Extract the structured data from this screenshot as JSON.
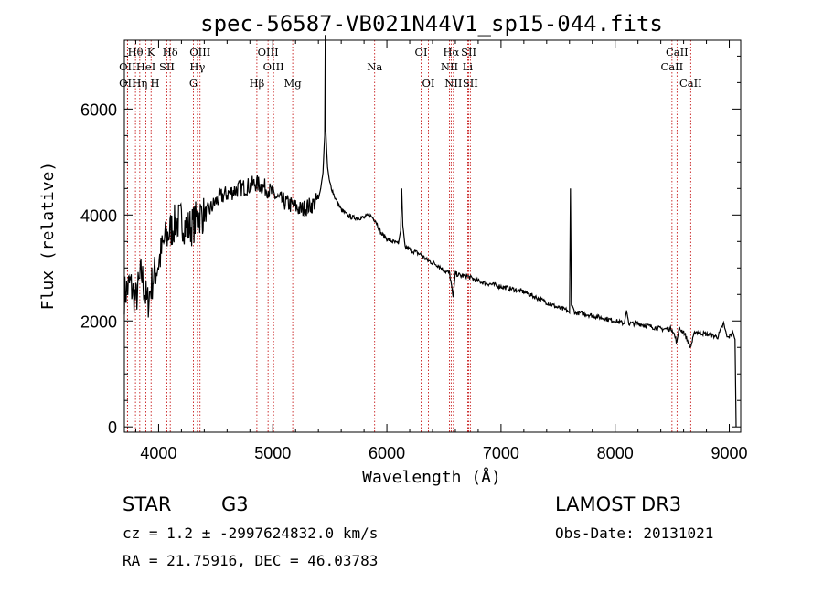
{
  "chart_data": {
    "type": "line",
    "title": "spec-56587-VB021N44V1_sp15-044.fits",
    "xlabel": "Wavelength (Å)",
    "ylabel": "Flux (relative)",
    "xlim": [
      3700,
      9100
    ],
    "ylim": [
      -100,
      7300
    ],
    "xticks": [
      4000,
      5000,
      6000,
      7000,
      8000,
      9000
    ],
    "yticks": [
      0,
      2000,
      4000,
      6000
    ],
    "continuum": [
      [
        3700,
        2500
      ],
      [
        3750,
        2700
      ],
      [
        3800,
        2400
      ],
      [
        3850,
        2900
      ],
      [
        3900,
        2300
      ],
      [
        3950,
        2800
      ],
      [
        4000,
        3100
      ],
      [
        4050,
        3500
      ],
      [
        4100,
        3700
      ],
      [
        4150,
        3850
      ],
      [
        4200,
        3900
      ],
      [
        4250,
        3750
      ],
      [
        4300,
        3800
      ],
      [
        4350,
        4000
      ],
      [
        4400,
        4000
      ],
      [
        4450,
        4100
      ],
      [
        4500,
        4250
      ],
      [
        4550,
        4350
      ],
      [
        4600,
        4400
      ],
      [
        4650,
        4450
      ],
      [
        4700,
        4500
      ],
      [
        4750,
        4520
      ],
      [
        4800,
        4550
      ],
      [
        4850,
        4600
      ],
      [
        4900,
        4550
      ],
      [
        4950,
        4500
      ],
      [
        5000,
        4400
      ],
      [
        5050,
        4300
      ],
      [
        5100,
        4250
      ],
      [
        5150,
        4200
      ],
      [
        5200,
        4150
      ],
      [
        5250,
        4100
      ],
      [
        5300,
        4150
      ],
      [
        5350,
        4200
      ],
      [
        5400,
        4300
      ],
      [
        5420,
        4500
      ],
      [
        5440,
        4800
      ],
      [
        5455,
        5500
      ],
      [
        5460,
        7400
      ],
      [
        5465,
        5600
      ],
      [
        5480,
        4900
      ],
      [
        5500,
        4600
      ],
      [
        5550,
        4300
      ],
      [
        5600,
        4100
      ],
      [
        5650,
        4000
      ],
      [
        5700,
        3950
      ],
      [
        5800,
        3950
      ],
      [
        5850,
        4000
      ],
      [
        5900,
        3900
      ],
      [
        5950,
        3650
      ],
      [
        6000,
        3550
      ],
      [
        6050,
        3500
      ],
      [
        6100,
        3450
      ],
      [
        6120,
        3700
      ],
      [
        6130,
        4500
      ],
      [
        6140,
        3800
      ],
      [
        6160,
        3400
      ],
      [
        6200,
        3350
      ],
      [
        6250,
        3300
      ],
      [
        6300,
        3250
      ],
      [
        6350,
        3150
      ],
      [
        6400,
        3100
      ],
      [
        6450,
        3050
      ],
      [
        6500,
        2950
      ],
      [
        6550,
        2900
      ],
      [
        6580,
        2450
      ],
      [
        6600,
        2900
      ],
      [
        6650,
        2850
      ],
      [
        6700,
        2850
      ],
      [
        6750,
        2800
      ],
      [
        6800,
        2750
      ],
      [
        6900,
        2700
      ],
      [
        7000,
        2650
      ],
      [
        7100,
        2600
      ],
      [
        7200,
        2550
      ],
      [
        7300,
        2450
      ],
      [
        7400,
        2350
      ],
      [
        7500,
        2250
      ],
      [
        7580,
        2200
      ],
      [
        7600,
        2150
      ],
      [
        7608,
        4500
      ],
      [
        7616,
        2300
      ],
      [
        7650,
        2150
      ],
      [
        7700,
        2150
      ],
      [
        7800,
        2100
      ],
      [
        7900,
        2050
      ],
      [
        8000,
        2000
      ],
      [
        8080,
        1950
      ],
      [
        8100,
        2200
      ],
      [
        8120,
        1950
      ],
      [
        8200,
        1950
      ],
      [
        8300,
        1900
      ],
      [
        8400,
        1850
      ],
      [
        8500,
        1850
      ],
      [
        8540,
        1600
      ],
      [
        8560,
        1850
      ],
      [
        8600,
        1800
      ],
      [
        8660,
        1500
      ],
      [
        8700,
        1800
      ],
      [
        8800,
        1750
      ],
      [
        8900,
        1700
      ],
      [
        8950,
        1950
      ],
      [
        8980,
        1700
      ],
      [
        9000,
        1700
      ],
      [
        9030,
        1800
      ],
      [
        9050,
        1650
      ],
      [
        9060,
        0
      ]
    ],
    "lines": [
      {
        "label": "Hθ",
        "x": 3797,
        "row": 1
      },
      {
        "label": "OII",
        "x": 3727,
        "row": 2
      },
      {
        "label": "OII",
        "x": 3727,
        "row": 3
      },
      {
        "label": "Hη",
        "x": 3835,
        "row": 3
      },
      {
        "label": "HeI",
        "x": 3889,
        "row": 2
      },
      {
        "label": "K",
        "x": 3934,
        "row": 1
      },
      {
        "label": "H",
        "x": 3969,
        "row": 3
      },
      {
        "label": "SII",
        "x": 4072,
        "row": 2
      },
      {
        "label": "Hδ",
        "x": 4102,
        "row": 1
      },
      {
        "label": "OIII",
        "x": 4363,
        "row": 1
      },
      {
        "label": "Hγ",
        "x": 4340,
        "row": 2
      },
      {
        "label": "G",
        "x": 4305,
        "row": 3
      },
      {
        "label": "OIII",
        "x": 4959,
        "row": 1
      },
      {
        "label": "OIII",
        "x": 5007,
        "row": 2
      },
      {
        "label": "Hβ",
        "x": 4861,
        "row": 3
      },
      {
        "label": "Mg",
        "x": 5175,
        "row": 3
      },
      {
        "label": "Na",
        "x": 5893,
        "row": 2
      },
      {
        "label": "OI",
        "x": 6300,
        "row": 1
      },
      {
        "label": "OI",
        "x": 6364,
        "row": 3
      },
      {
        "label": "Hα",
        "x": 6563,
        "row": 1
      },
      {
        "label": "NII",
        "x": 6548,
        "row": 2
      },
      {
        "label": "NII",
        "x": 6583,
        "row": 3
      },
      {
        "label": "SII",
        "x": 6717,
        "row": 1
      },
      {
        "label": "Li",
        "x": 6708,
        "row": 2
      },
      {
        "label": "SII",
        "x": 6731,
        "row": 3
      },
      {
        "label": "CaII",
        "x": 8542,
        "row": 1
      },
      {
        "label": "CaII",
        "x": 8498,
        "row": 2
      },
      {
        "label": "CaII",
        "x": 8662,
        "row": 3
      }
    ],
    "line_color": "#c00000"
  },
  "info": {
    "object_class": "STAR",
    "subclass": "G3",
    "survey": "LAMOST DR3",
    "redshift_text": "cz = 1.2 ± -2997624832.0 km/s",
    "obs_date": "Obs-Date: 20131021",
    "coords": "RA =  21.75916, DEC =  46.03783"
  }
}
